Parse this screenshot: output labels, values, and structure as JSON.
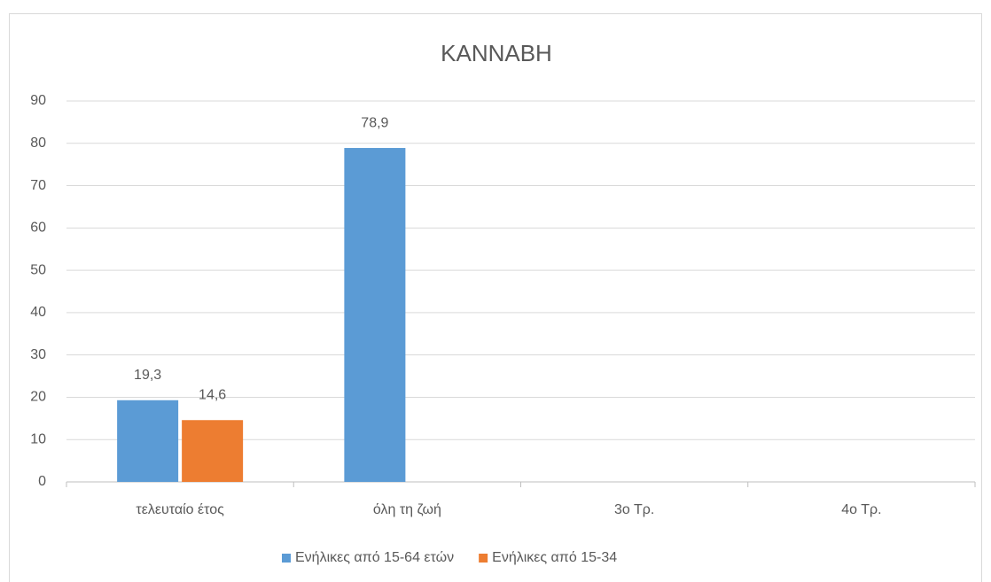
{
  "chart_data": {
    "type": "bar",
    "title": "ΚΑΝΝΑΒΗ",
    "categories": [
      "τελευταίο έτος",
      "όλη τη ζωή",
      "3ο Τρ.",
      "4ο Τρ."
    ],
    "series": [
      {
        "name": "Ενήλικες από 15-64 ετών",
        "color": "#5b9bd5",
        "values": [
          19.3,
          78.9,
          null,
          null
        ],
        "value_labels": [
          "19,3",
          "78,9",
          null,
          null
        ]
      },
      {
        "name": "Ενήλικες από 15-34",
        "color": "#ed7d31",
        "values": [
          14.6,
          null,
          null,
          null
        ],
        "value_labels": [
          "14,6",
          null,
          null,
          null
        ]
      }
    ],
    "ylim": [
      0,
      90
    ],
    "yticks": [
      0,
      10,
      20,
      30,
      40,
      50,
      60,
      70,
      80,
      90
    ],
    "grid": true,
    "legend": "bottom"
  }
}
